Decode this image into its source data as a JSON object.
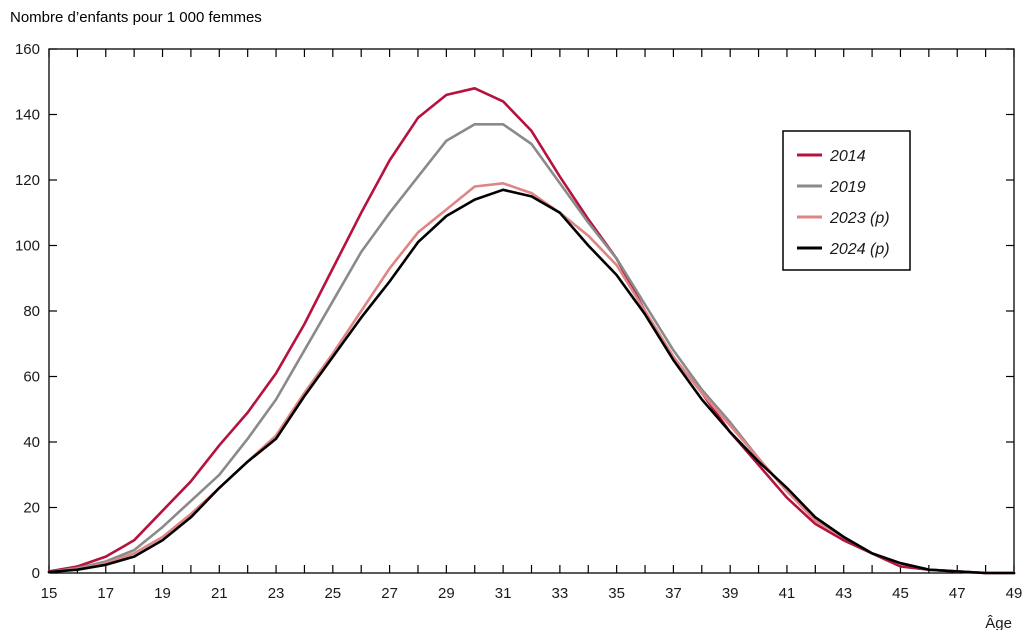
{
  "chart_data": {
    "type": "line",
    "title": "",
    "ylabel": "Nombre d’enfants pour 1 000 femmes",
    "xlabel": "Âge",
    "xlim": [
      15,
      49
    ],
    "ylim": [
      0,
      160
    ],
    "xticks": [
      "15",
      "17",
      "19",
      "21",
      "23",
      "25",
      "27",
      "29",
      "31",
      "33",
      "35",
      "37",
      "39",
      "41",
      "43",
      "45",
      "47",
      "49"
    ],
    "yticks": [
      "0",
      "20",
      "40",
      "60",
      "80",
      "100",
      "120",
      "140",
      "160"
    ],
    "grid": false,
    "legend_position": "top-right",
    "x": [
      15,
      16,
      17,
      18,
      19,
      20,
      21,
      22,
      23,
      24,
      25,
      26,
      27,
      28,
      29,
      30,
      31,
      32,
      33,
      34,
      35,
      36,
      37,
      38,
      39,
      40,
      41,
      42,
      43,
      44,
      45,
      46,
      47,
      48,
      49
    ],
    "series": [
      {
        "name": "2014",
        "color": "#b5123e",
        "values": [
          0.5,
          2,
          5,
          10,
          19,
          28,
          39,
          49,
          61,
          76,
          93,
          110,
          126,
          139,
          146,
          148,
          144,
          135,
          121,
          108,
          96,
          80,
          66,
          55,
          43,
          33,
          23,
          15,
          10,
          6,
          2,
          1,
          0.5,
          0,
          0
        ]
      },
      {
        "name": "2019",
        "color": "#8a8a8a",
        "values": [
          0.3,
          1.5,
          3.5,
          7,
          14,
          22,
          30,
          41,
          53,
          68,
          83,
          98,
          110,
          121,
          132,
          137,
          137,
          131,
          119,
          107,
          96,
          82,
          68,
          56,
          46,
          35,
          25,
          17,
          11,
          6,
          3,
          1,
          0.5,
          0,
          0
        ]
      },
      {
        "name": "2023 (p)",
        "color": "#e08585",
        "values": [
          0.3,
          1.2,
          3,
          6,
          11,
          18,
          26,
          34,
          42,
          55,
          67,
          80,
          93,
          104,
          111,
          118,
          119,
          116,
          110,
          103,
          94,
          80,
          66,
          55,
          45,
          35,
          25,
          16,
          11,
          6,
          3,
          1,
          0.5,
          0,
          0
        ]
      },
      {
        "name": "2024 (p)",
        "color": "#000000",
        "values": [
          0.3,
          1,
          2.5,
          5,
          10,
          17,
          26,
          34,
          41,
          54,
          66,
          78,
          89,
          101,
          109,
          114,
          117,
          115,
          110,
          100,
          91,
          79,
          65,
          53,
          43,
          34,
          26,
          17,
          11,
          6,
          3,
          1,
          0.5,
          0,
          0
        ]
      }
    ]
  }
}
